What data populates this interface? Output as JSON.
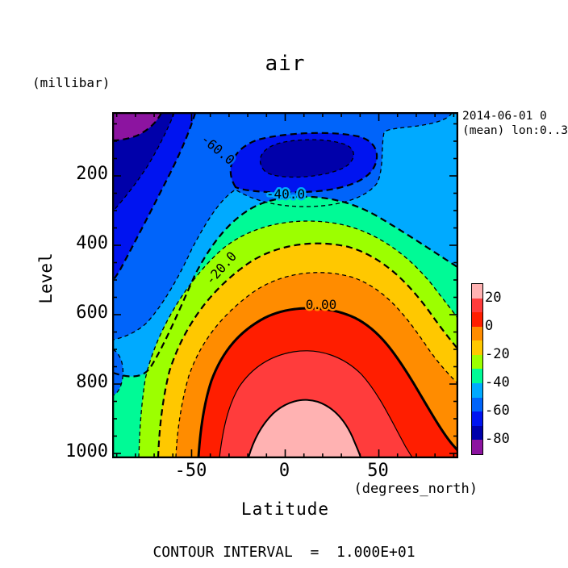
{
  "title": "air",
  "meta": {
    "line1": "2014-06-01 0",
    "line2": "(mean) lon:0..3"
  },
  "y_axis": {
    "unit": "(millibar)",
    "title": "Level",
    "tick_labels": [
      "200",
      "400",
      "600",
      "800",
      "1000"
    ],
    "tick_values": [
      200,
      400,
      600,
      800,
      1000
    ],
    "minor_start": 50,
    "minor_end": 1000,
    "minor_step": 50
  },
  "x_axis": {
    "title": "Latitude",
    "unit": "(degrees_north)",
    "tick_labels": [
      "-50",
      "0",
      "50"
    ],
    "tick_values": [
      -50,
      0,
      50
    ],
    "minor_start": -90,
    "minor_end": 90,
    "minor_step": 10
  },
  "footer": "CONTOUR INTERVAL  =  1.000E+01",
  "contour_labels": {
    "m60": "-60.0",
    "m40": "-40.0",
    "m20": "-20.0",
    "zero": "0.00"
  },
  "palette": {
    "pink": "#ffb2b2",
    "red": "#ff3c3c",
    "scarlet": "#ff1e00",
    "orange": "#ff8c00",
    "gold": "#ffc800",
    "chartreuse": "#9cff00",
    "spring": "#00fa96",
    "cyan": "#00aaff",
    "dodger": "#0064fa",
    "blue": "#0014f0",
    "navy": "#0000aa",
    "purple": "#8c14a0"
  },
  "colorbar": {
    "labels": [
      "20",
      "0",
      "-20",
      "-40",
      "-60",
      "-80"
    ],
    "band_order": [
      "pink",
      "red",
      "scarlet",
      "orange",
      "gold",
      "chartreuse",
      "spring",
      "cyan",
      "dodger",
      "blue",
      "navy",
      "purple"
    ]
  },
  "chart_data": {
    "type": "heatmap",
    "subtype": "filled-contour",
    "title": "air",
    "xlabel": "Latitude",
    "x_unit": "degrees_north",
    "ylabel": "Level",
    "y_unit": "millibar",
    "x_range": [
      -92,
      92
    ],
    "y_range": [
      20,
      1010
    ],
    "y_axis_inverted": true,
    "x_ticks_major": [
      -50,
      0,
      50
    ],
    "y_ticks_major": [
      200,
      400,
      600,
      800,
      1000
    ],
    "contour_interval": 10,
    "contour_levels": [
      -80,
      -70,
      -60,
      -50,
      -40,
      -30,
      -20,
      -10,
      0,
      10,
      20
    ],
    "labeled_contours": [
      -60,
      -40,
      -20,
      0
    ],
    "negative_contour_style": "dashed",
    "positive_contour_style": "solid",
    "colorbar_boundary_labels": [
      20,
      0,
      -20,
      -40,
      -60,
      -80
    ],
    "band_colors_top_to_bottom": [
      "#ffb2b2",
      "#ff3c3c",
      "#ff1e00",
      "#ff8c00",
      "#ffc800",
      "#9cff00",
      "#00fa96",
      "#00aaff",
      "#0064fa",
      "#0014f0",
      "#0000aa",
      "#8c14a0"
    ],
    "annotations": {
      "date": "2014-06-01 0",
      "cell_method": "(mean) lon:0..3",
      "footer": "CONTOUR INTERVAL = 1.000E+01"
    },
    "grid_estimates": {
      "lats": [
        -90,
        -60,
        -30,
        0,
        30,
        60,
        90
      ],
      "levels_mb": [
        100,
        200,
        300,
        400,
        500,
        700,
        850,
        1000
      ],
      "values_degC": [
        [
          -84,
          -74,
          -66,
          -78,
          -72,
          -58,
          -48
        ],
        [
          -74,
          -60,
          -56,
          -54,
          -52,
          -50,
          -50
        ],
        [
          -62,
          -48,
          -40,
          -36,
          -34,
          -38,
          -42
        ],
        [
          -56,
          -40,
          -26,
          -22,
          -20,
          -26,
          -32
        ],
        [
          -50,
          -32,
          -16,
          -10,
          -9,
          -16,
          -22
        ],
        [
          -46,
          -18,
          0,
          6,
          7,
          -2,
          -10
        ],
        [
          -54,
          -10,
          8,
          14,
          16,
          5,
          -2
        ],
        [
          -34,
          -4,
          14,
          23,
          25,
          12,
          4
        ]
      ]
    }
  }
}
